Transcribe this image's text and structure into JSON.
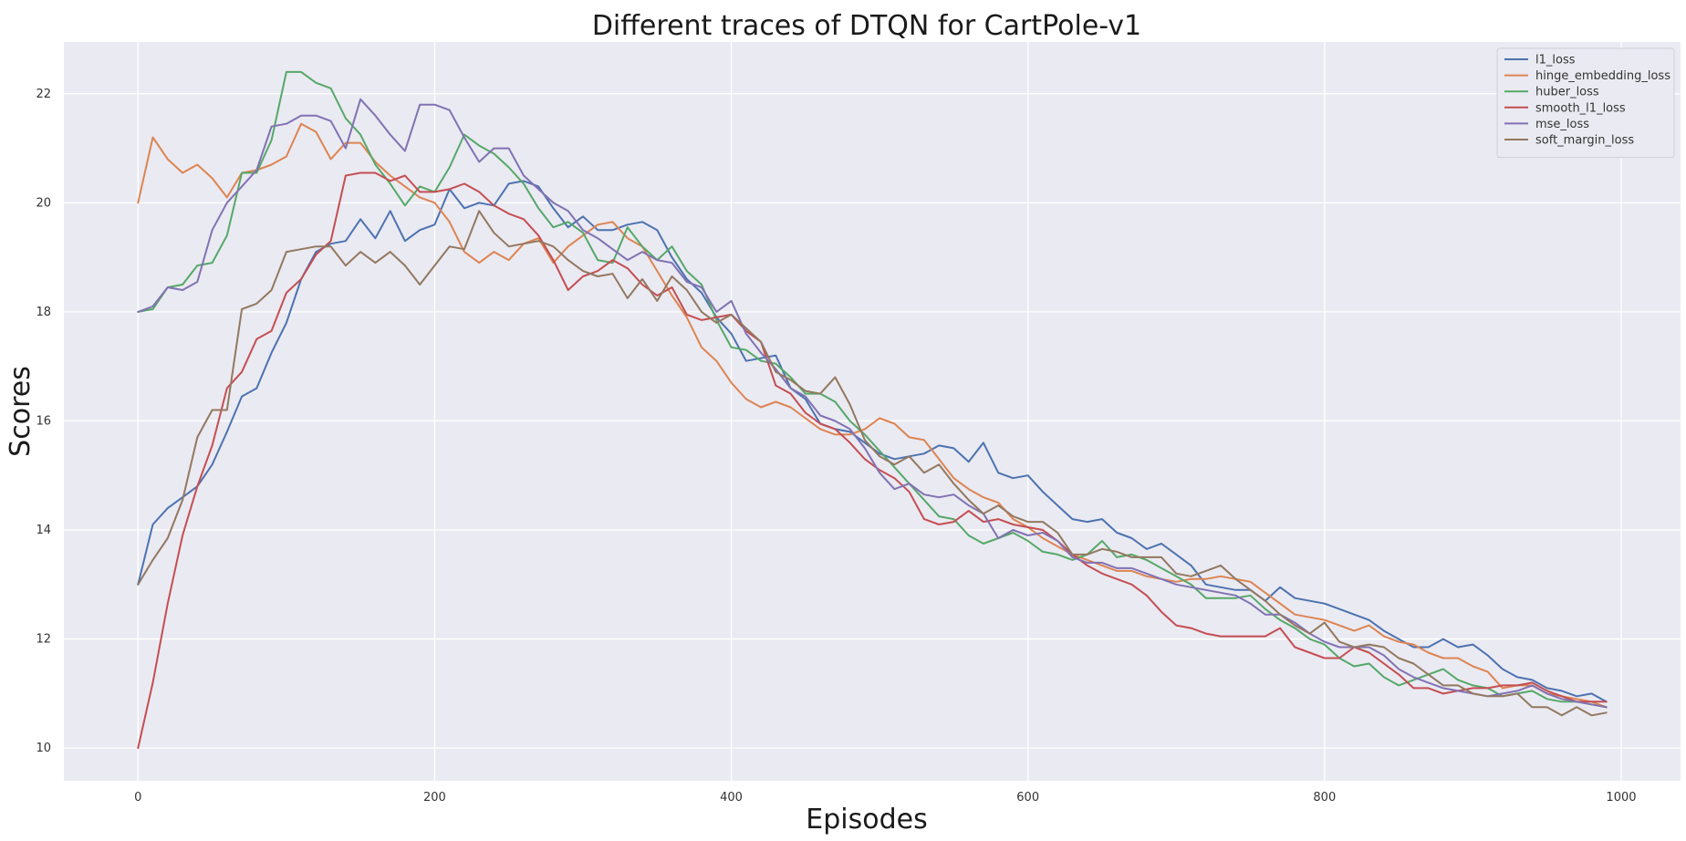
{
  "chart_data": {
    "type": "line",
    "title": "Different traces of DTQN for CartPole-v1",
    "xlabel": "Episodes",
    "ylabel": "Scores",
    "xlim": [
      -50,
      1040
    ],
    "ylim": [
      9.4,
      22.95
    ],
    "xticks": [
      0,
      200,
      400,
      600,
      800,
      1000
    ],
    "yticks": [
      10,
      12,
      14,
      16,
      18,
      20,
      22
    ],
    "grid": true,
    "legend_position": "top-right",
    "x": [
      0,
      10,
      20,
      30,
      40,
      50,
      60,
      70,
      80,
      90,
      100,
      110,
      120,
      130,
      140,
      150,
      160,
      170,
      180,
      190,
      200,
      210,
      220,
      230,
      240,
      250,
      260,
      270,
      280,
      290,
      300,
      310,
      320,
      330,
      340,
      350,
      360,
      370,
      380,
      390,
      400,
      410,
      420,
      430,
      440,
      450,
      460,
      470,
      480,
      490,
      500,
      510,
      520,
      530,
      540,
      550,
      560,
      570,
      580,
      590,
      600,
      610,
      620,
      630,
      640,
      650,
      660,
      670,
      680,
      690,
      700,
      710,
      720,
      730,
      740,
      750,
      760,
      770,
      780,
      790,
      800,
      810,
      820,
      830,
      840,
      850,
      860,
      870,
      880,
      890,
      900,
      910,
      920,
      930,
      940,
      950,
      960,
      970,
      980,
      990
    ],
    "series": [
      {
        "name": "l1_loss",
        "color": "#4c72b0",
        "values": [
          13.0,
          14.1,
          14.4,
          14.6,
          14.8,
          15.2,
          15.8,
          16.45,
          16.6,
          17.25,
          17.8,
          18.6,
          19.1,
          19.25,
          19.3,
          19.7,
          19.35,
          19.85,
          19.3,
          19.5,
          19.6,
          20.25,
          19.9,
          20.0,
          19.95,
          20.35,
          20.4,
          20.3,
          19.9,
          19.55,
          19.75,
          19.5,
          19.5,
          19.6,
          19.65,
          19.5,
          19.0,
          18.6,
          18.35,
          17.9,
          17.6,
          17.1,
          17.15,
          17.2,
          16.6,
          16.4,
          15.95,
          15.85,
          15.8,
          15.6,
          15.4,
          15.3,
          15.35,
          15.4,
          15.55,
          15.5,
          15.25,
          15.6,
          15.05,
          14.95,
          15.0,
          14.7,
          14.45,
          14.2,
          14.15,
          14.2,
          13.95,
          13.85,
          13.65,
          13.75,
          13.55,
          13.35,
          13.0,
          12.95,
          12.9,
          12.9,
          12.7,
          12.95,
          12.75,
          12.7,
          12.65,
          12.55,
          12.45,
          12.35,
          12.15,
          12.0,
          11.85,
          11.85,
          12.0,
          11.85,
          11.9,
          11.7,
          11.45,
          11.3,
          11.25,
          11.1,
          11.05,
          10.95,
          11.0,
          10.85
        ]
      },
      {
        "name": "hinge_embedding_loss",
        "color": "#dd8452",
        "values": [
          20.0,
          21.2,
          20.8,
          20.55,
          20.7,
          20.45,
          20.1,
          20.55,
          20.6,
          20.7,
          20.85,
          21.45,
          21.3,
          20.8,
          21.1,
          21.1,
          20.75,
          20.5,
          20.3,
          20.1,
          20.0,
          19.65,
          19.1,
          18.9,
          19.1,
          18.95,
          19.25,
          19.35,
          18.9,
          19.2,
          19.4,
          19.6,
          19.65,
          19.35,
          19.2,
          18.75,
          18.3,
          17.9,
          17.35,
          17.1,
          16.7,
          16.4,
          16.25,
          16.35,
          16.25,
          16.05,
          15.85,
          15.75,
          15.75,
          15.85,
          16.05,
          15.95,
          15.7,
          15.65,
          15.3,
          14.95,
          14.75,
          14.6,
          14.5,
          14.2,
          14.05,
          13.85,
          13.7,
          13.55,
          13.45,
          13.35,
          13.25,
          13.25,
          13.15,
          13.1,
          13.05,
          13.1,
          13.1,
          13.15,
          13.1,
          13.05,
          12.85,
          12.65,
          12.45,
          12.4,
          12.35,
          12.25,
          12.15,
          12.25,
          12.05,
          11.95,
          11.9,
          11.75,
          11.65,
          11.65,
          11.5,
          11.4,
          11.1,
          11.15,
          11.15,
          11.0,
          10.95,
          10.9,
          10.85,
          10.75
        ]
      },
      {
        "name": "huber_loss",
        "color": "#55a868",
        "values": [
          18.0,
          18.05,
          18.45,
          18.5,
          18.85,
          18.9,
          19.4,
          20.55,
          20.55,
          21.15,
          22.4,
          22.4,
          22.2,
          22.1,
          21.55,
          21.25,
          20.7,
          20.35,
          19.95,
          20.3,
          20.2,
          20.65,
          21.25,
          21.05,
          20.9,
          20.65,
          20.35,
          19.9,
          19.55,
          19.65,
          19.45,
          18.95,
          18.9,
          19.55,
          19.2,
          18.95,
          19.2,
          18.75,
          18.5,
          17.85,
          17.35,
          17.3,
          17.1,
          17.05,
          16.8,
          16.5,
          16.5,
          16.35,
          16.0,
          15.75,
          15.45,
          15.15,
          14.85,
          14.55,
          14.25,
          14.2,
          13.9,
          13.75,
          13.85,
          13.95,
          13.8,
          13.6,
          13.55,
          13.45,
          13.55,
          13.8,
          13.5,
          13.55,
          13.45,
          13.3,
          13.15,
          13.0,
          12.75,
          12.75,
          12.75,
          12.8,
          12.55,
          12.35,
          12.2,
          12.0,
          11.9,
          11.65,
          11.5,
          11.55,
          11.3,
          11.15,
          11.25,
          11.35,
          11.45,
          11.25,
          11.15,
          11.1,
          10.95,
          11.0,
          11.05,
          10.9,
          10.85,
          10.85,
          10.8,
          10.75
        ]
      },
      {
        "name": "smooth_l1_loss",
        "color": "#c44e52",
        "values": [
          10.0,
          11.2,
          12.65,
          13.9,
          14.8,
          15.55,
          16.6,
          16.9,
          17.5,
          17.65,
          18.35,
          18.6,
          19.05,
          19.3,
          20.5,
          20.55,
          20.55,
          20.4,
          20.5,
          20.2,
          20.2,
          20.25,
          20.35,
          20.2,
          19.95,
          19.8,
          19.7,
          19.4,
          18.95,
          18.4,
          18.65,
          18.75,
          18.95,
          18.8,
          18.5,
          18.3,
          18.45,
          17.95,
          17.85,
          17.9,
          17.95,
          17.65,
          17.45,
          16.65,
          16.5,
          16.15,
          15.95,
          15.85,
          15.6,
          15.3,
          15.1,
          14.95,
          14.7,
          14.2,
          14.1,
          14.15,
          14.35,
          14.15,
          14.2,
          14.1,
          14.05,
          14.0,
          13.8,
          13.55,
          13.35,
          13.2,
          13.1,
          13.0,
          12.8,
          12.5,
          12.25,
          12.2,
          12.1,
          12.05,
          12.05,
          12.05,
          12.05,
          12.2,
          11.85,
          11.75,
          11.65,
          11.65,
          11.85,
          11.75,
          11.55,
          11.35,
          11.1,
          11.1,
          11.0,
          11.05,
          11.1,
          11.1,
          11.15,
          11.15,
          11.2,
          11.05,
          10.95,
          10.85,
          10.85,
          10.85
        ]
      },
      {
        "name": "mse_loss",
        "color": "#8172b3",
        "values": [
          18.0,
          18.1,
          18.45,
          18.4,
          18.55,
          19.5,
          20.0,
          20.3,
          20.6,
          21.4,
          21.45,
          21.6,
          21.6,
          21.5,
          21.0,
          21.9,
          21.6,
          21.25,
          20.95,
          21.8,
          21.8,
          21.7,
          21.2,
          20.75,
          21.0,
          21.0,
          20.5,
          20.25,
          20.0,
          19.85,
          19.5,
          19.35,
          19.15,
          18.95,
          19.1,
          18.95,
          18.9,
          18.55,
          18.45,
          18.0,
          18.2,
          17.6,
          17.25,
          16.95,
          16.6,
          16.45,
          16.1,
          16.0,
          15.85,
          15.5,
          15.05,
          14.75,
          14.85,
          14.65,
          14.6,
          14.65,
          14.45,
          14.3,
          13.85,
          14.0,
          13.9,
          13.95,
          13.8,
          13.5,
          13.4,
          13.4,
          13.3,
          13.3,
          13.2,
          13.1,
          13.0,
          12.95,
          12.9,
          12.85,
          12.8,
          12.65,
          12.45,
          12.45,
          12.3,
          12.1,
          11.95,
          11.85,
          11.85,
          11.85,
          11.7,
          11.45,
          11.3,
          11.2,
          11.1,
          11.05,
          11.0,
          10.95,
          11.0,
          11.05,
          11.15,
          11.0,
          10.9,
          10.85,
          10.8,
          10.75
        ]
      },
      {
        "name": "soft_margin_loss",
        "color": "#937860",
        "values": [
          13.0,
          13.45,
          13.85,
          14.55,
          15.7,
          16.2,
          16.2,
          18.05,
          18.15,
          18.4,
          19.1,
          19.15,
          19.2,
          19.2,
          18.85,
          19.1,
          18.9,
          19.1,
          18.85,
          18.5,
          18.85,
          19.2,
          19.15,
          19.85,
          19.45,
          19.2,
          19.25,
          19.3,
          19.2,
          18.95,
          18.75,
          18.65,
          18.7,
          18.25,
          18.6,
          18.2,
          18.65,
          18.4,
          18.0,
          17.8,
          17.95,
          17.7,
          17.45,
          16.9,
          16.75,
          16.55,
          16.5,
          16.8,
          16.3,
          15.65,
          15.35,
          15.2,
          15.35,
          15.05,
          15.2,
          14.85,
          14.55,
          14.3,
          14.45,
          14.25,
          14.15,
          14.15,
          13.95,
          13.55,
          13.55,
          13.65,
          13.6,
          13.5,
          13.5,
          13.5,
          13.2,
          13.15,
          13.25,
          13.35,
          13.1,
          12.9,
          12.7,
          12.45,
          12.25,
          12.1,
          12.3,
          11.95,
          11.85,
          11.9,
          11.85,
          11.65,
          11.55,
          11.35,
          11.15,
          11.15,
          11.0,
          10.95,
          10.95,
          11.0,
          10.75,
          10.75,
          10.6,
          10.75,
          10.6,
          10.65
        ]
      }
    ]
  }
}
